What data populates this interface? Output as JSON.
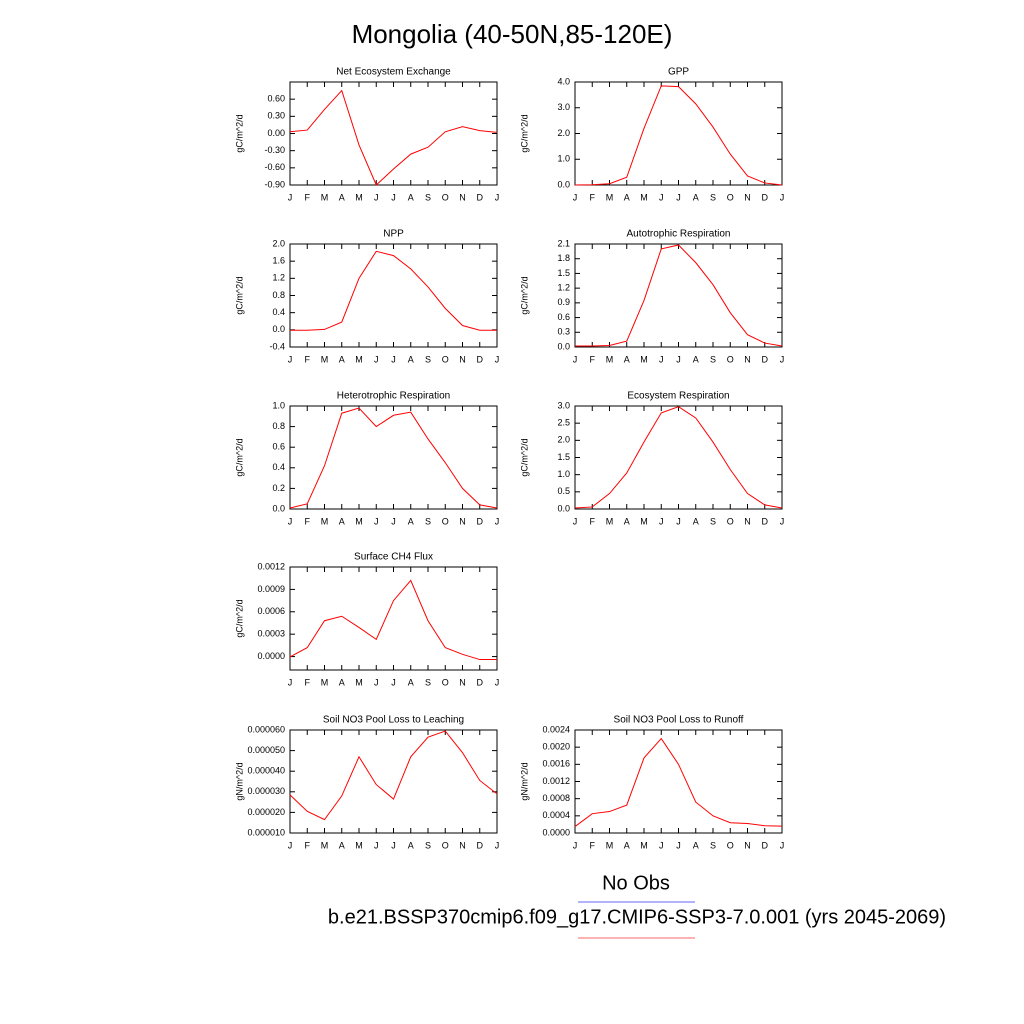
{
  "title": "Mongolia (40-50N,85-120E)",
  "chart_data": [
    {
      "type": "line",
      "title": "Net Ecosystem Exchange",
      "ylabel": "gC/m^2/d",
      "categories": [
        "J",
        "F",
        "M",
        "A",
        "M",
        "J",
        "J",
        "A",
        "S",
        "O",
        "N",
        "D",
        "J"
      ],
      "series": [
        {
          "color": "#ff0000",
          "values": [
            0.03,
            0.06,
            0.42,
            0.75,
            -0.2,
            -0.9,
            -0.62,
            -0.36,
            -0.24,
            0.03,
            0.12,
            0.05,
            0.02
          ]
        }
      ],
      "ylim": [
        -0.9,
        0.9
      ],
      "yticks": [
        {
          "value": -0.9,
          "label": "-0.90"
        },
        {
          "value": -0.6,
          "label": "-0.60"
        },
        {
          "value": -0.3,
          "label": "-0.30"
        },
        {
          "value": 0,
          "label": "0.00"
        },
        {
          "value": 0.3,
          "label": "0.30"
        },
        {
          "value": 0.6,
          "label": "0.60"
        }
      ]
    },
    {
      "type": "line",
      "title": "GPP",
      "ylabel": "gC/m^2/d",
      "categories": [
        "J",
        "F",
        "M",
        "A",
        "M",
        "J",
        "J",
        "A",
        "S",
        "O",
        "N",
        "D",
        "J"
      ],
      "series": [
        {
          "color": "#ff0000",
          "values": [
            0,
            0.01,
            0.05,
            0.3,
            2.2,
            3.85,
            3.82,
            3.15,
            2.25,
            1.2,
            0.35,
            0.08,
            0
          ]
        }
      ],
      "ylim": [
        0,
        4
      ],
      "yticks": [
        {
          "value": 0,
          "label": "0.0"
        },
        {
          "value": 1,
          "label": "1.0"
        },
        {
          "value": 2,
          "label": "2.0"
        },
        {
          "value": 3,
          "label": "3.0"
        },
        {
          "value": 4,
          "label": "4.0"
        }
      ]
    },
    {
      "type": "line",
      "title": "NPP",
      "ylabel": "gC/m^2/d",
      "categories": [
        "J",
        "F",
        "M",
        "A",
        "M",
        "J",
        "J",
        "A",
        "S",
        "O",
        "N",
        "D",
        "J"
      ],
      "series": [
        {
          "color": "#ff0000",
          "values": [
            -0.01,
            -0.01,
            0.01,
            0.18,
            1.2,
            1.83,
            1.73,
            1.42,
            1.0,
            0.5,
            0.1,
            -0.01,
            -0.01
          ]
        }
      ],
      "ylim": [
        -0.4,
        2.0
      ],
      "yticks": [
        -0.4,
        {
          "value": 0,
          "label": "0.0"
        },
        0.4,
        0.8,
        1.2,
        1.6,
        {
          "value": 2,
          "label": "2.0"
        }
      ]
    },
    {
      "type": "line",
      "title": "Autotrophic Respiration",
      "ylabel": "gC/m^2/d",
      "categories": [
        "J",
        "F",
        "M",
        "A",
        "M",
        "J",
        "J",
        "A",
        "S",
        "O",
        "N",
        "D",
        "J"
      ],
      "series": [
        {
          "color": "#ff0000",
          "values": [
            0.02,
            0.02,
            0.03,
            0.12,
            0.95,
            2.0,
            2.08,
            1.72,
            1.27,
            0.7,
            0.25,
            0.08,
            0.02
          ]
        }
      ],
      "ylim": [
        0,
        2.1
      ],
      "yticks": [
        {
          "value": 0,
          "label": "0.0"
        },
        0.3,
        0.6,
        0.9,
        1.2,
        1.5,
        1.8,
        2.1
      ]
    },
    {
      "type": "line",
      "title": "Heterotrophic Respiration",
      "ylabel": "gC/m^2/d",
      "categories": [
        "J",
        "F",
        "M",
        "A",
        "M",
        "J",
        "J",
        "A",
        "S",
        "O",
        "N",
        "D",
        "J"
      ],
      "series": [
        {
          "color": "#ff0000",
          "values": [
            0.01,
            0.05,
            0.42,
            0.93,
            0.98,
            0.8,
            0.91,
            0.94,
            0.68,
            0.45,
            0.2,
            0.04,
            0.01
          ]
        }
      ],
      "ylim": [
        0,
        1
      ],
      "yticks": [
        {
          "value": 0,
          "label": "0.0"
        },
        0.2,
        0.4,
        0.6,
        0.8,
        {
          "value": 1,
          "label": "1.0"
        }
      ]
    },
    {
      "type": "line",
      "title": "Ecosystem Respiration",
      "ylabel": "gC/m^2/d",
      "categories": [
        "J",
        "F",
        "M",
        "A",
        "M",
        "J",
        "J",
        "A",
        "S",
        "O",
        "N",
        "D",
        "J"
      ],
      "series": [
        {
          "color": "#ff0000",
          "values": [
            0.03,
            0.06,
            0.45,
            1.05,
            1.95,
            2.8,
            2.98,
            2.65,
            1.95,
            1.15,
            0.45,
            0.12,
            0.03
          ]
        }
      ],
      "ylim": [
        0,
        3
      ],
      "yticks": [
        {
          "value": 0,
          "label": "0.0"
        },
        0.5,
        {
          "value": 1,
          "label": "1.0"
        },
        1.5,
        {
          "value": 2,
          "label": "2.0"
        },
        2.5,
        {
          "value": 3,
          "label": "3.0"
        }
      ]
    },
    {
      "type": "line",
      "title": "Surface CH4 Flux",
      "ylabel": "gC/m^2/d",
      "categories": [
        "J",
        "F",
        "M",
        "A",
        "M",
        "J",
        "J",
        "A",
        "S",
        "O",
        "N",
        "D",
        "J"
      ],
      "series": [
        {
          "color": "#ff0000",
          "values": [
            -5e-06,
            0.00012,
            0.00048,
            0.00054,
            0.00039,
            0.00023,
            0.00075,
            0.00102,
            0.00048,
            0.00012,
            3e-05,
            -4e-05,
            -4e-05
          ]
        }
      ],
      "ylim": [
        -0.00018,
        0.0012
      ],
      "yticks": [
        {
          "value": 0,
          "label": "0.0000"
        },
        0.0003,
        0.0006,
        0.0009,
        0.0012
      ]
    },
    {
      "type": "line",
      "title": "Soil NO3 Pool Loss to Leaching",
      "ylabel": "gN/m^2/d",
      "categories": [
        "J",
        "F",
        "M",
        "A",
        "M",
        "J",
        "J",
        "A",
        "S",
        "O",
        "N",
        "D",
        "J"
      ],
      "series": [
        {
          "color": "#ff0000",
          "values": [
            2.85e-05,
            2.05e-05,
            1.65e-05,
            2.8e-05,
            4.7e-05,
            3.35e-05,
            2.65e-05,
            4.7e-05,
            5.65e-05,
            5.95e-05,
            4.9e-05,
            3.55e-05,
            2.9e-05
          ]
        }
      ],
      "ylim": [
        1e-05,
        6e-05
      ],
      "yticks": [
        {
          "value": 1e-05,
          "label": "0.000010"
        },
        {
          "value": 2e-05,
          "label": "0.000020"
        },
        {
          "value": 3e-05,
          "label": "0.000030"
        },
        {
          "value": 4e-05,
          "label": "0.000040"
        },
        {
          "value": 5e-05,
          "label": "0.000050"
        },
        {
          "value": 6e-05,
          "label": "0.000060"
        }
      ]
    },
    {
      "type": "line",
      "title": "Soil NO3 Pool Loss to Runoff",
      "ylabel": "gN/m^2/d",
      "categories": [
        "J",
        "F",
        "M",
        "A",
        "M",
        "J",
        "J",
        "A",
        "S",
        "O",
        "N",
        "D",
        "J"
      ],
      "series": [
        {
          "color": "#ff0000",
          "values": [
            0.00015,
            0.00045,
            0.0005,
            0.00065,
            0.00175,
            0.0022,
            0.0016,
            0.00072,
            0.0004,
            0.00024,
            0.00022,
            0.00017,
            0.00016
          ]
        }
      ],
      "ylim": [
        0,
        0.0024
      ],
      "yticks": [
        {
          "value": 0,
          "label": "0.0000"
        },
        0.0004,
        0.0008,
        0.0012,
        0.0016,
        {
          "value": 0.002,
          "label": "0.0020"
        },
        0.0024
      ]
    }
  ],
  "legend": [
    {
      "name": "No Obs",
      "color": "#0000ff"
    },
    {
      "name": "b.e21.BSSP370cmip6.f09_g17.CMIP6-SSP3-7.0.001 (yrs 2045-2069)",
      "color": "#ff0000"
    }
  ]
}
